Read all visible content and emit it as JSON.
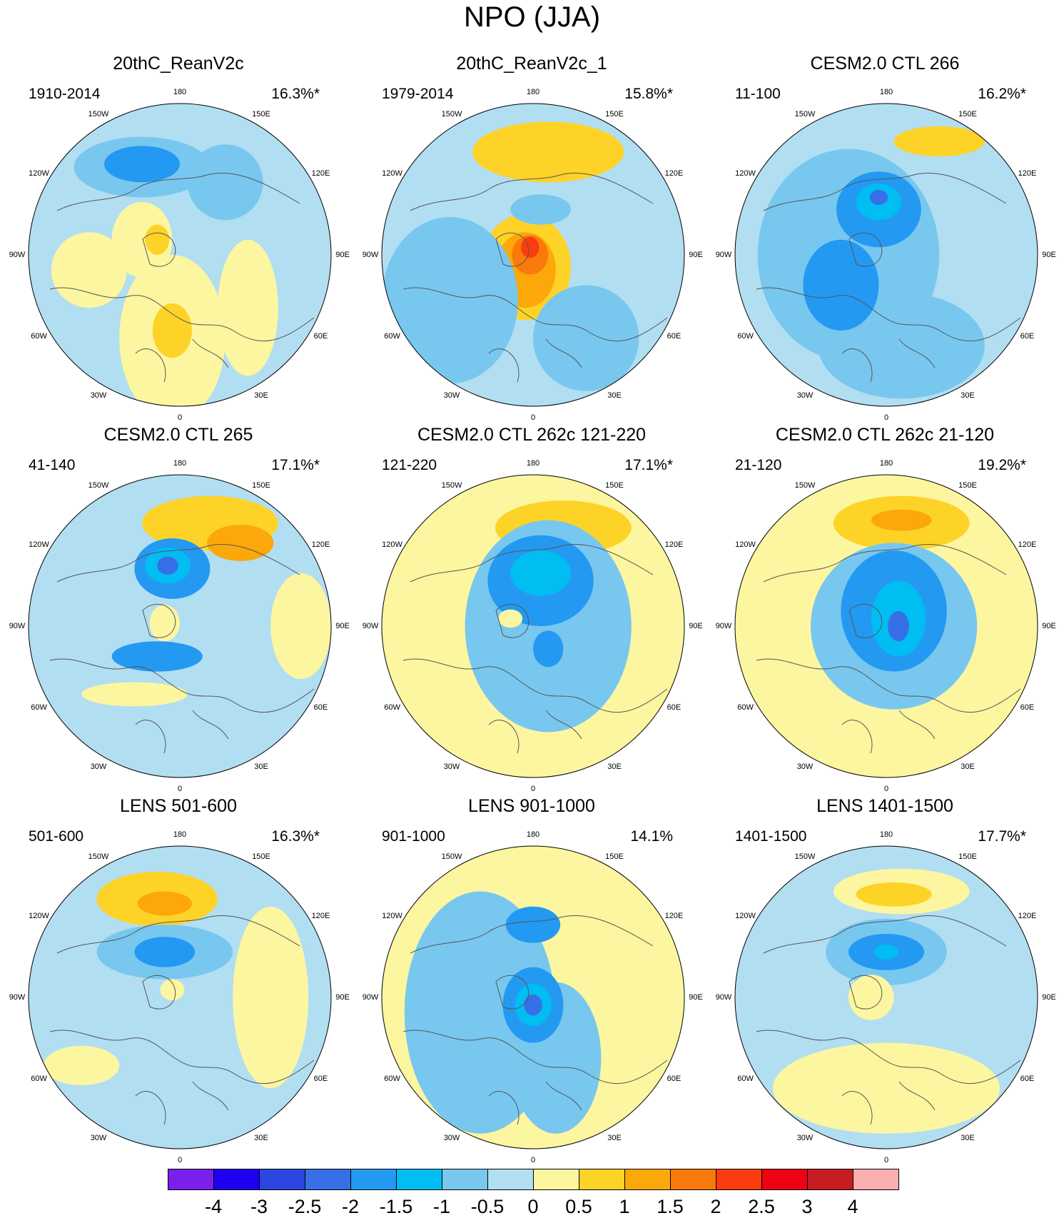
{
  "figure_title": "NPO (JJA)",
  "lon_labels": [
    "180",
    "150W",
    "150E",
    "120W",
    "120E",
    "90W",
    "90E",
    "60W",
    "60E",
    "30W",
    "30E",
    "0"
  ],
  "panels": [
    {
      "title": "20thC_ReanV2c",
      "range": "1910-2014",
      "pct": "16.3%*",
      "blobs": [
        {
          "lvl": "pos1",
          "at": [
            -0.05,
            0.55
          ],
          "r": [
            0.35,
            0.55
          ]
        },
        {
          "lvl": "pos1",
          "at": [
            0.45,
            0.35
          ],
          "r": [
            0.2,
            0.45
          ]
        },
        {
          "lvl": "pos1",
          "at": [
            -0.6,
            0.1
          ],
          "r": [
            0.25,
            0.25
          ]
        },
        {
          "lvl": "pos1",
          "at": [
            -0.25,
            -0.1
          ],
          "r": [
            0.2,
            0.25
          ]
        },
        {
          "lvl": "pos2",
          "at": [
            -0.05,
            0.5
          ],
          "r": [
            0.13,
            0.18
          ]
        },
        {
          "lvl": "pos2",
          "at": [
            -0.15,
            -0.1
          ],
          "r": [
            0.08,
            0.1
          ]
        },
        {
          "lvl": "neg1",
          "at": [
            -0.25,
            -0.58
          ],
          "r": [
            0.45,
            0.2
          ]
        },
        {
          "lvl": "neg1",
          "at": [
            0.3,
            -0.48
          ],
          "r": [
            0.25,
            0.25
          ]
        },
        {
          "lvl": "neg2",
          "at": [
            -0.25,
            -0.6
          ],
          "r": [
            0.25,
            0.12
          ]
        }
      ]
    },
    {
      "title": "20thC_ReanV2c_1",
      "range": "1979-2014",
      "pct": "15.8%*",
      "blobs": [
        {
          "lvl": "pos2",
          "at": [
            0.1,
            -0.68
          ],
          "r": [
            0.5,
            0.2
          ]
        },
        {
          "lvl": "pos2",
          "at": [
            -0.05,
            0.08
          ],
          "r": [
            0.3,
            0.35
          ]
        },
        {
          "lvl": "pos3",
          "at": [
            -0.05,
            0.1
          ],
          "r": [
            0.2,
            0.25
          ]
        },
        {
          "lvl": "pos4",
          "at": [
            -0.02,
            0.0
          ],
          "r": [
            0.12,
            0.13
          ]
        },
        {
          "lvl": "pos5",
          "at": [
            -0.02,
            -0.05
          ],
          "r": [
            0.06,
            0.07
          ]
        },
        {
          "lvl": "neg1",
          "at": [
            -0.55,
            0.3
          ],
          "r": [
            0.45,
            0.55
          ]
        },
        {
          "lvl": "neg1",
          "at": [
            0.35,
            0.55
          ],
          "r": [
            0.35,
            0.35
          ]
        },
        {
          "lvl": "neg1",
          "at": [
            0.05,
            -0.3
          ],
          "r": [
            0.2,
            0.1
          ]
        }
      ]
    },
    {
      "title": "CESM2.0 CTL 266",
      "range": "11-100",
      "pct": "16.2%*",
      "blobs": [
        {
          "lvl": "neg1",
          "at": [
            -0.25,
            0.0
          ],
          "r": [
            0.6,
            0.7
          ]
        },
        {
          "lvl": "neg1",
          "at": [
            0.1,
            0.6
          ],
          "r": [
            0.55,
            0.35
          ]
        },
        {
          "lvl": "neg2",
          "at": [
            -0.05,
            -0.3
          ],
          "r": [
            0.28,
            0.25
          ]
        },
        {
          "lvl": "neg2",
          "at": [
            -0.3,
            0.2
          ],
          "r": [
            0.25,
            0.3
          ]
        },
        {
          "lvl": "neg3",
          "at": [
            -0.05,
            -0.35
          ],
          "r": [
            0.15,
            0.12
          ]
        },
        {
          "lvl": "neg4",
          "at": [
            -0.05,
            -0.38
          ],
          "r": [
            0.06,
            0.05
          ]
        },
        {
          "lvl": "pos2",
          "at": [
            0.35,
            -0.75
          ],
          "r": [
            0.3,
            0.1
          ]
        }
      ]
    },
    {
      "title": "CESM2.0 CTL 265",
      "range": "41-140",
      "pct": "17.1%*",
      "blobs": [
        {
          "lvl": "pos2",
          "at": [
            0.2,
            -0.68
          ],
          "r": [
            0.45,
            0.18
          ]
        },
        {
          "lvl": "pos3",
          "at": [
            0.4,
            -0.55
          ],
          "r": [
            0.22,
            0.12
          ]
        },
        {
          "lvl": "pos1",
          "at": [
            0.8,
            0.0
          ],
          "r": [
            0.2,
            0.35
          ]
        },
        {
          "lvl": "pos1",
          "at": [
            -0.3,
            0.45
          ],
          "r": [
            0.35,
            0.08
          ]
        },
        {
          "lvl": "pos1",
          "at": [
            -0.1,
            -0.02
          ],
          "r": [
            0.1,
            0.12
          ]
        },
        {
          "lvl": "neg2",
          "at": [
            -0.05,
            -0.38
          ],
          "r": [
            0.25,
            0.2
          ]
        },
        {
          "lvl": "neg3",
          "at": [
            -0.08,
            -0.4
          ],
          "r": [
            0.15,
            0.12
          ]
        },
        {
          "lvl": "neg4",
          "at": [
            -0.08,
            -0.4
          ],
          "r": [
            0.07,
            0.06
          ]
        },
        {
          "lvl": "neg2",
          "at": [
            -0.15,
            0.2
          ],
          "r": [
            0.3,
            0.1
          ]
        }
      ]
    },
    {
      "title": "CESM2.0 CTL 262c 121-220",
      "range": "121-220",
      "pct": "17.1%*",
      "blobs": [
        {
          "lvl": "pos2",
          "at": [
            0.2,
            -0.65
          ],
          "r": [
            0.45,
            0.18
          ]
        },
        {
          "lvl": "neg1",
          "at": [
            0.1,
            0.0
          ],
          "r": [
            0.55,
            0.7
          ]
        },
        {
          "lvl": "neg2",
          "at": [
            0.05,
            -0.3
          ],
          "r": [
            0.35,
            0.3
          ]
        },
        {
          "lvl": "neg3",
          "at": [
            0.05,
            -0.35
          ],
          "r": [
            0.2,
            0.15
          ]
        },
        {
          "lvl": "neg2",
          "at": [
            0.1,
            0.15
          ],
          "r": [
            0.1,
            0.12
          ]
        },
        {
          "lvl": "pos1",
          "at": [
            -0.15,
            -0.05
          ],
          "r": [
            0.08,
            0.06
          ]
        }
      ]
    },
    {
      "title": "CESM2.0 CTL 262c 21-120",
      "range": "21-120",
      "pct": "19.2%*",
      "blobs": [
        {
          "lvl": "pos2",
          "at": [
            0.1,
            -0.68
          ],
          "r": [
            0.45,
            0.18
          ]
        },
        {
          "lvl": "pos3",
          "at": [
            0.1,
            -0.7
          ],
          "r": [
            0.2,
            0.07
          ]
        },
        {
          "lvl": "neg1",
          "at": [
            0.05,
            0.0
          ],
          "r": [
            0.55,
            0.55
          ]
        },
        {
          "lvl": "neg2",
          "at": [
            0.05,
            -0.1
          ],
          "r": [
            0.35,
            0.4
          ]
        },
        {
          "lvl": "neg3",
          "at": [
            0.08,
            -0.05
          ],
          "r": [
            0.18,
            0.25
          ]
        },
        {
          "lvl": "neg4",
          "at": [
            0.08,
            0.0
          ],
          "r": [
            0.07,
            0.1
          ]
        }
      ]
    },
    {
      "title": "LENS 501-600",
      "range": "501-600",
      "pct": "16.3%*",
      "blobs": [
        {
          "lvl": "pos2",
          "at": [
            -0.15,
            -0.65
          ],
          "r": [
            0.4,
            0.18
          ]
        },
        {
          "lvl": "pos3",
          "at": [
            -0.1,
            -0.62
          ],
          "r": [
            0.18,
            0.08
          ]
        },
        {
          "lvl": "neg1",
          "at": [
            -0.1,
            -0.3
          ],
          "r": [
            0.45,
            0.18
          ]
        },
        {
          "lvl": "neg2",
          "at": [
            -0.1,
            -0.3
          ],
          "r": [
            0.2,
            0.1
          ]
        },
        {
          "lvl": "pos1",
          "at": [
            -0.65,
            0.45
          ],
          "r": [
            0.25,
            0.13
          ]
        },
        {
          "lvl": "pos1",
          "at": [
            0.6,
            0.0
          ],
          "r": [
            0.25,
            0.6
          ]
        },
        {
          "lvl": "pos1",
          "at": [
            -0.05,
            -0.05
          ],
          "r": [
            0.08,
            0.07
          ]
        }
      ]
    },
    {
      "title": "LENS 901-1000",
      "range": "901-1000",
      "pct": "14.1%",
      "blobs": [
        {
          "lvl": "neg1",
          "at": [
            -0.35,
            0.1
          ],
          "r": [
            0.5,
            0.8
          ]
        },
        {
          "lvl": "neg1",
          "at": [
            0.15,
            0.4
          ],
          "r": [
            0.3,
            0.5
          ]
        },
        {
          "lvl": "neg2",
          "at": [
            0.0,
            -0.48
          ],
          "r": [
            0.18,
            0.12
          ]
        },
        {
          "lvl": "neg2",
          "at": [
            0.0,
            0.05
          ],
          "r": [
            0.2,
            0.25
          ]
        },
        {
          "lvl": "neg3",
          "at": [
            0.0,
            0.05
          ],
          "r": [
            0.12,
            0.14
          ]
        },
        {
          "lvl": "neg4",
          "at": [
            0.0,
            0.05
          ],
          "r": [
            0.06,
            0.07
          ]
        }
      ]
    },
    {
      "title": "LENS 1401-1500",
      "range": "1401-1500",
      "pct": "17.7%*",
      "blobs": [
        {
          "lvl": "pos1",
          "at": [
            0.1,
            -0.7
          ],
          "r": [
            0.45,
            0.15
          ]
        },
        {
          "lvl": "pos2",
          "at": [
            0.05,
            -0.68
          ],
          "r": [
            0.25,
            0.08
          ]
        },
        {
          "lvl": "neg1",
          "at": [
            0.0,
            -0.3
          ],
          "r": [
            0.4,
            0.22
          ]
        },
        {
          "lvl": "neg2",
          "at": [
            0.0,
            -0.3
          ],
          "r": [
            0.25,
            0.12
          ]
        },
        {
          "lvl": "neg3",
          "at": [
            0.0,
            -0.3
          ],
          "r": [
            0.08,
            0.05
          ]
        },
        {
          "lvl": "pos1",
          "at": [
            -0.1,
            0.0
          ],
          "r": [
            0.15,
            0.15
          ]
        },
        {
          "lvl": "pos1",
          "at": [
            0.0,
            0.6
          ],
          "r": [
            0.75,
            0.3
          ]
        }
      ]
    }
  ],
  "colorbar": {
    "labels": [
      "-4",
      "-3",
      "-2.5",
      "-2",
      "-1.5",
      "-1",
      "-0.5",
      "0",
      "0.5",
      "1",
      "1.5",
      "2",
      "2.5",
      "3",
      "4"
    ],
    "colors": [
      "#7b1fea",
      "#1f00f0",
      "#2d46df",
      "#3770e6",
      "#2399f2",
      "#00bdf2",
      "#78c7ef",
      "#b2def2",
      "#fdf6a0",
      "#fdd328",
      "#fca80a",
      "#f97a0a",
      "#fb3c0f",
      "#ef0014",
      "#c61c22",
      "#fbaeb0"
    ]
  },
  "level_colors": {
    "neg1": "#78c7ef",
    "neg2": "#2399f2",
    "neg3": "#00bdf2",
    "neg4": "#3770e6",
    "pos1": "#fdf6a0",
    "pos2": "#fdd328",
    "pos3": "#fca80a",
    "pos4": "#f97a0a",
    "pos5": "#fb3c0f"
  },
  "background_fill": [
    "#b2def2",
    "#b2def2",
    "#b2def2",
    "#b2def2",
    "#fdf6a0",
    "#fdf6a0",
    "#b2def2",
    "#fdf6a0",
    "#b2def2"
  ]
}
